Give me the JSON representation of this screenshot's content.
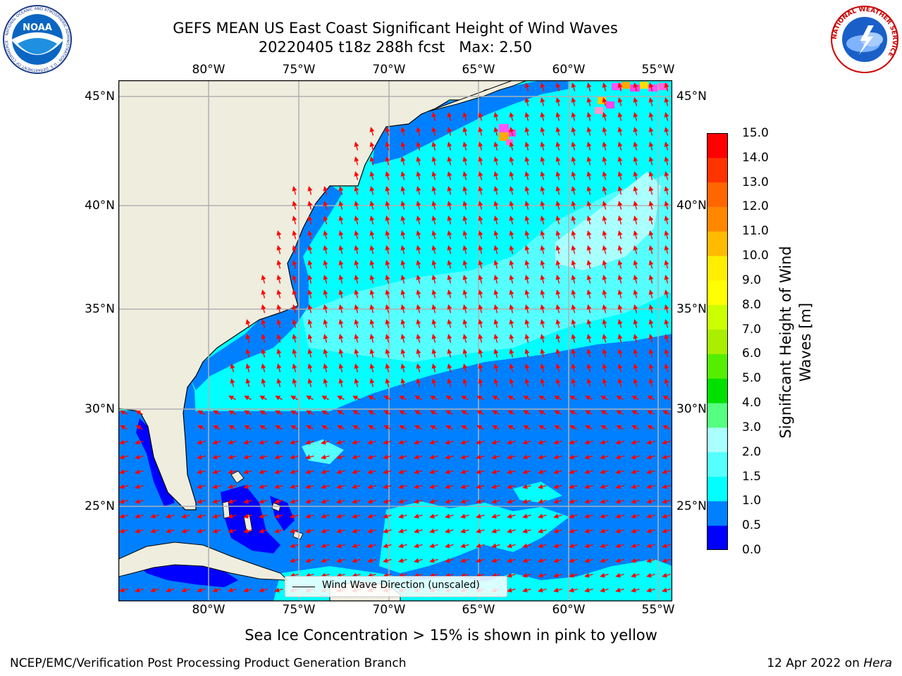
{
  "header": {
    "title_line1": "GEFS MEAN US East Coast Significant Height of Wind Waves",
    "title_line2": "20220405 t18z 288h fcst   Max: 2.50"
  },
  "logos": {
    "left": {
      "name": "NOAA",
      "ring_text": "NATIONAL OCEANIC AND ATMOSPHERIC ADMINISTRATION · U.S. DEPARTMENT OF COMMERCE"
    },
    "right": {
      "name": "National Weather Service",
      "ring_text": "NATIONAL WEATHER SERVICE"
    }
  },
  "map": {
    "projection": "Plate Carree",
    "lon_range": [
      -85,
      -54.2
    ],
    "lat_range": [
      20.4,
      45.9
    ],
    "lon_ticks": [
      "80°W",
      "75°W",
      "70°W",
      "65°W",
      "60°W",
      "55°W"
    ],
    "lat_ticks": [
      "45°N",
      "40°N",
      "35°N",
      "30°N",
      "25°N"
    ],
    "gridlines": true,
    "land_color": "#efedde",
    "arrow_color": "#ff0000",
    "legend_label": "Wind Wave Direction (unscaled)",
    "field": "Significant Height of Wind Waves",
    "max_value": 2.5,
    "wave_height_regions_m": {
      "offshore_north_of_31N": "1.0-2.0",
      "offshore_southeast_of_31N": "0.5-1.0",
      "gulf_of_maine_coastal": "0.5-1.0",
      "bahamas_banks_and_florida_straits": "0.0-0.5",
      "central_sargasso_local_max": "2.0-2.5"
    },
    "wind_direction_regions": {
      "north_of_31N": "toward north-northwest",
      "south_of_31N": "toward west-southwest"
    },
    "sea_ice": "pink to yellow patches near Newfoundland and Nova Scotia"
  },
  "colorbar": {
    "title": "Significant Height of Wind Waves [m]",
    "units": "m",
    "ticks": [
      "0.0",
      "0.5",
      "1.0",
      "1.5",
      "2.0",
      "3.0",
      "4.0",
      "5.0",
      "6.0",
      "7.0",
      "8.0",
      "9.0",
      "10.0",
      "11.0",
      "12.0",
      "13.0",
      "14.0",
      "15.0"
    ],
    "colors": [
      "#0000ff",
      "#0080ff",
      "#00ffff",
      "#55ffff",
      "#aaffff",
      "#55ff80",
      "#00e000",
      "#55ee00",
      "#aaee00",
      "#ccff00",
      "#ffff00",
      "#ffee00",
      "#ffbb00",
      "#ff8800",
      "#ff6600",
      "#ff3300",
      "#ff0000"
    ]
  },
  "footer": {
    "sea_ice_note": "Sea Ice Concentration > 15% is shown in pink to yellow",
    "credits": "NCEP/EMC/Verification Post Processing Product Generation Branch",
    "date": "12 Apr 2022 on",
    "machine": "Hera"
  }
}
